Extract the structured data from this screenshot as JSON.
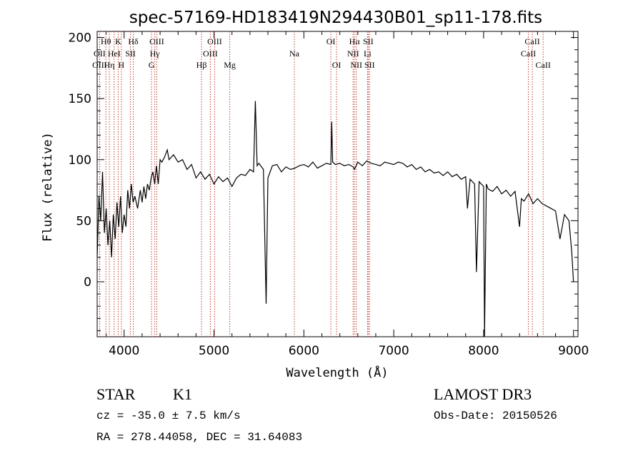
{
  "chart_data": {
    "type": "line",
    "title": "spec-57169-HD183419N294430B01_sp11-178.fits",
    "xlabel": "Wavelength (Å)",
    "ylabel": "Flux (relative)",
    "xlim": [
      3700,
      9050
    ],
    "ylim": [
      -45,
      205
    ],
    "xticks": [
      4000,
      5000,
      6000,
      7000,
      8000,
      9000
    ],
    "yticks": [
      0,
      50,
      100,
      150,
      200
    ],
    "grid": false,
    "series": [
      {
        "color": "#000000",
        "x": [
          3700,
          3720,
          3740,
          3760,
          3780,
          3800,
          3820,
          3840,
          3860,
          3880,
          3900,
          3920,
          3940,
          3960,
          3980,
          4000,
          4020,
          4040,
          4060,
          4080,
          4100,
          4120,
          4150,
          4180,
          4200,
          4220,
          4240,
          4260,
          4280,
          4300,
          4320,
          4340,
          4360,
          4380,
          4400,
          4420,
          4450,
          4480,
          4500,
          4550,
          4600,
          4650,
          4700,
          4750,
          4800,
          4850,
          4900,
          4950,
          5000,
          5050,
          5100,
          5150,
          5200,
          5250,
          5300,
          5350,
          5400,
          5440,
          5460,
          5480,
          5500,
          5550,
          5580,
          5600,
          5650,
          5700,
          5750,
          5800,
          5850,
          5900,
          5950,
          6000,
          6050,
          6100,
          6150,
          6200,
          6250,
          6300,
          6310,
          6320,
          6350,
          6400,
          6450,
          6500,
          6550,
          6563,
          6600,
          6650,
          6700,
          6750,
          6800,
          6850,
          6900,
          6950,
          7000,
          7050,
          7100,
          7150,
          7200,
          7250,
          7300,
          7350,
          7400,
          7450,
          7500,
          7550,
          7600,
          7650,
          7700,
          7750,
          7800,
          7820,
          7850,
          7900,
          7920,
          7950,
          8000,
          8010,
          8030,
          8050,
          8100,
          8150,
          8200,
          8250,
          8300,
          8350,
          8400,
          8420,
          8450,
          8500,
          8550,
          8600,
          8650,
          8700,
          8750,
          8800,
          8850,
          8900,
          8950,
          8980,
          9000
        ],
        "y": [
          20,
          70,
          50,
          90,
          40,
          60,
          30,
          50,
          20,
          55,
          35,
          65,
          45,
          70,
          40,
          55,
          45,
          75,
          60,
          80,
          65,
          70,
          60,
          75,
          65,
          78,
          68,
          80,
          75,
          85,
          90,
          80,
          95,
          80,
          100,
          98,
          102,
          108,
          100,
          104,
          98,
          100,
          92,
          96,
          85,
          90,
          84,
          88,
          80,
          86,
          82,
          85,
          78,
          85,
          88,
          87,
          92,
          90,
          148,
          95,
          97,
          92,
          -18,
          85,
          95,
          96,
          90,
          94,
          92,
          93,
          95,
          96,
          94,
          98,
          93,
          95,
          97,
          96,
          131,
          98,
          96,
          97,
          95,
          96,
          94,
          92,
          98,
          95,
          99,
          97,
          96,
          95,
          98,
          97,
          96,
          98,
          97,
          94,
          96,
          92,
          94,
          90,
          92,
          89,
          90,
          87,
          90,
          86,
          88,
          84,
          86,
          60,
          84,
          80,
          8,
          82,
          78,
          -45,
          80,
          76,
          74,
          78,
          72,
          75,
          70,
          74,
          45,
          68,
          66,
          72,
          64,
          68,
          64,
          62,
          60,
          58,
          35,
          55,
          50,
          25,
          0
        ]
      }
    ],
    "line_markers": [
      {
        "label": "Hθ",
        "x": 3797,
        "row": 1
      },
      {
        "label": "OII",
        "x": 3727,
        "row": 2
      },
      {
        "label": "OIII",
        "x": 3727,
        "row": 3
      },
      {
        "label": "K",
        "x": 3934,
        "row": 1
      },
      {
        "label": "HeI",
        "x": 3889,
        "row": 2
      },
      {
        "label": "Hη",
        "x": 3835,
        "row": 3
      },
      {
        "label": "H",
        "x": 3969,
        "row": 3
      },
      {
        "label": "Hδ",
        "x": 4102,
        "row": 1
      },
      {
        "label": "SII",
        "x": 4070,
        "row": 2
      },
      {
        "label": "OIII",
        "x": 4363,
        "row": 1
      },
      {
        "label": "Hγ",
        "x": 4341,
        "row": 2
      },
      {
        "label": "G",
        "x": 4305,
        "row": 3
      },
      {
        "label": "OIII",
        "x": 5007,
        "row": 1
      },
      {
        "label": "OIII",
        "x": 4959,
        "row": 2
      },
      {
        "label": "Hβ",
        "x": 4861,
        "row": 3
      },
      {
        "label": "Mg",
        "x": 5175,
        "row": 3
      },
      {
        "label": "Na",
        "x": 5894,
        "row": 2
      },
      {
        "label": "OI",
        "x": 6300,
        "row": 1
      },
      {
        "label": "OI",
        "x": 6364,
        "row": 3
      },
      {
        "label": "Hα",
        "x": 6563,
        "row": 1
      },
      {
        "label": "SII",
        "x": 6716,
        "row": 1
      },
      {
        "label": "NII",
        "x": 6548,
        "row": 2
      },
      {
        "label": "Li",
        "x": 6708,
        "row": 2
      },
      {
        "label": "NII",
        "x": 6583,
        "row": 3
      },
      {
        "label": "SII",
        "x": 6731,
        "row": 3
      },
      {
        "label": "CaII",
        "x": 8542,
        "row": 1
      },
      {
        "label": "CaII",
        "x": 8498,
        "row": 2
      },
      {
        "label": "CaII",
        "x": 8662,
        "row": 3
      }
    ]
  },
  "info": {
    "object_class": "STAR",
    "subclass": "K1",
    "survey": "LAMOST DR3",
    "redshift": "cz = -35.0 ± 7.5 km/s",
    "obs_date": "Obs-Date: 20150526",
    "coords": "RA = 278.44058, DEC =  31.64083"
  }
}
